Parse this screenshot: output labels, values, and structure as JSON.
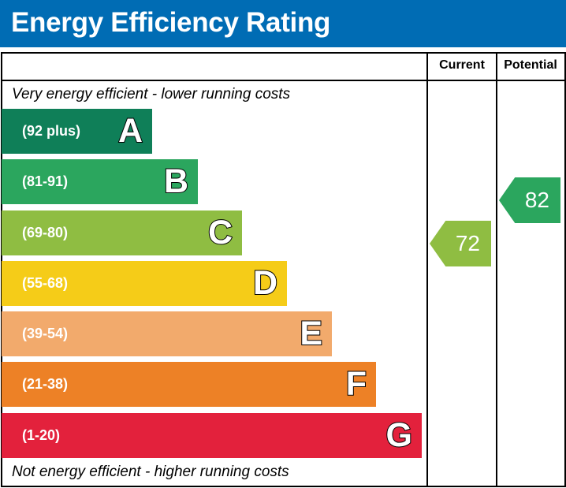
{
  "header": {
    "title": "Energy Efficiency Rating"
  },
  "columns": {
    "current": "Current",
    "potential": "Potential"
  },
  "notes": {
    "top": "Very energy efficient - lower running costs",
    "bottom": "Not energy efficient - higher running costs"
  },
  "chart_data": {
    "type": "bar",
    "title": "Energy Efficiency Rating",
    "bands": [
      {
        "letter": "A",
        "range": "(92 plus)",
        "color": "#0f7f58"
      },
      {
        "letter": "B",
        "range": "(81-91)",
        "color": "#2ba65e"
      },
      {
        "letter": "C",
        "range": "(69-80)",
        "color": "#8fbd42"
      },
      {
        "letter": "D",
        "range": "(55-68)",
        "color": "#f5cc18"
      },
      {
        "letter": "E",
        "range": "(39-54)",
        "color": "#f2aa6c"
      },
      {
        "letter": "F",
        "range": "(21-38)",
        "color": "#ed8126"
      },
      {
        "letter": "G",
        "range": "(1-20)",
        "color": "#e3213c"
      }
    ],
    "current": {
      "value": "72",
      "band": "C",
      "color": "#8fbd42"
    },
    "potential": {
      "value": "82",
      "band": "B",
      "color": "#2ba65e"
    }
  }
}
